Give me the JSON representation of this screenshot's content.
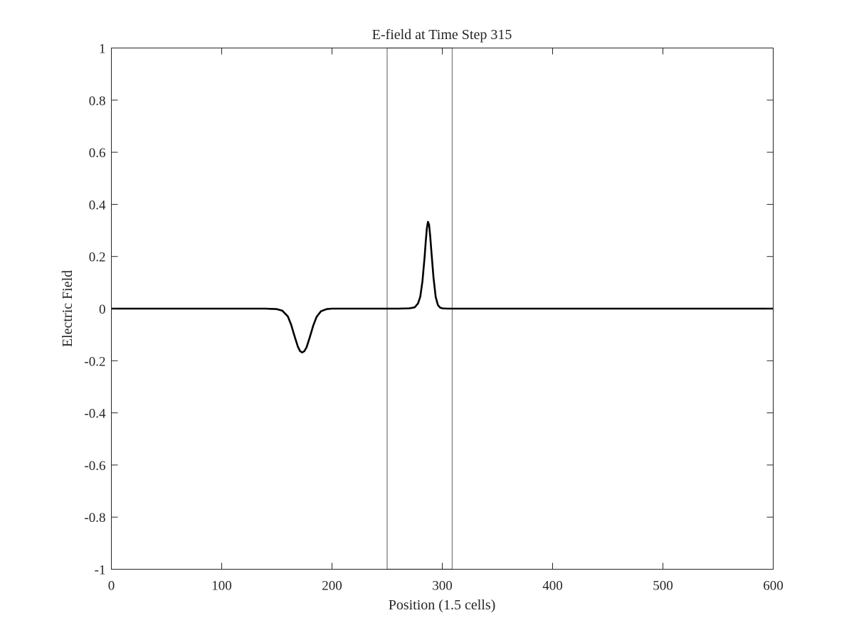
{
  "chart_data": {
    "type": "line",
    "title": "E-field at Time Step 315",
    "xlabel": "Position (1.5 cells)",
    "ylabel": "Electric Field",
    "xlim": [
      0,
      600
    ],
    "ylim": [
      -1,
      1
    ],
    "xticks": [
      0,
      100,
      200,
      300,
      400,
      500,
      600
    ],
    "xtick_labels": [
      "0",
      "100",
      "200",
      "300",
      "400",
      "500",
      "600"
    ],
    "yticks": [
      1,
      0.8,
      0.6,
      0.4,
      0.2,
      0,
      -0.2,
      -0.4,
      -0.6,
      -0.8,
      -1
    ],
    "ytick_labels": [
      "1",
      "0.8",
      "0.6",
      "0.4",
      "0.2",
      "0",
      "-0.2",
      "-0.4",
      "-0.6",
      "-0.8",
      "-1"
    ],
    "grid": false,
    "colors": {
      "line": "#000000",
      "region": "#808080",
      "axes": "#262626"
    },
    "region": {
      "x_start": 250,
      "x_end": 309,
      "y_bottom": -1,
      "y_top": 1
    },
    "series": [
      {
        "x": [
          0,
          140,
          150,
          155,
          160,
          163,
          166,
          169,
          171,
          173,
          175,
          177,
          180,
          183,
          186,
          190,
          195,
          200,
          260,
          270,
          275,
          278,
          280,
          282,
          284,
          285,
          286,
          287,
          288,
          289,
          290,
          292,
          294,
          296,
          298,
          300,
          305,
          310,
          400,
          500,
          600
        ],
        "y": [
          0,
          0,
          -0.002,
          -0.008,
          -0.03,
          -0.062,
          -0.105,
          -0.145,
          -0.163,
          -0.168,
          -0.163,
          -0.148,
          -0.108,
          -0.065,
          -0.032,
          -0.01,
          -0.002,
          0,
          0,
          0.001,
          0.005,
          0.02,
          0.045,
          0.105,
          0.2,
          0.258,
          0.308,
          0.333,
          0.322,
          0.28,
          0.225,
          0.12,
          0.045,
          0.014,
          0.004,
          0.001,
          0,
          0,
          0,
          0,
          0
        ]
      }
    ]
  }
}
